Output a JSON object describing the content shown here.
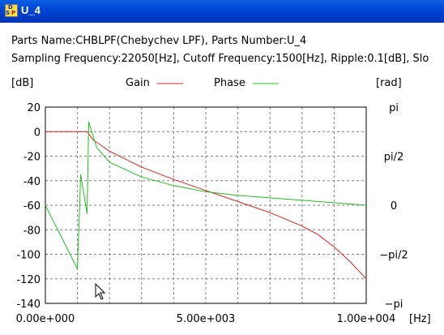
{
  "window": {
    "title": "U_4",
    "icon": "dsp-app-icon"
  },
  "info": {
    "line1": "Parts Name:CHBLPF(Chebychev LPF), Parts Number:U_4",
    "line2": "Sampling Frequency:22050[Hz], Cutoff Frequency:1500[Hz], Ripple:0.1[dB], Slo"
  },
  "legend": {
    "gain_label": "Gain",
    "phase_label": "Phase",
    "gain_color": "#e02020",
    "phase_color": "#20c020"
  },
  "axes": {
    "left_unit": "[dB]",
    "right_unit": "[rad]",
    "x_unit": "[Hz]"
  },
  "chart_data": {
    "type": "line",
    "ylim": [
      -140,
      20
    ],
    "xlim": [
      0,
      10000
    ],
    "y_ticks": [
      "20",
      "0",
      "-20",
      "-40",
      "-60",
      "-80",
      "-100",
      "-120",
      "-140"
    ],
    "y2_ticks": [
      "pi",
      "pi/2",
      "0",
      "−pi/2",
      "−pi"
    ],
    "x_ticks": [
      "0.00e+000",
      "5.00e+003",
      "1.00e+004"
    ],
    "grid": true,
    "series": [
      {
        "name": "Gain",
        "color": "#e02020",
        "x": [
          0,
          500,
          1000,
          1300,
          1500,
          2000,
          3000,
          4000,
          5000,
          6000,
          7000,
          8000,
          8500,
          9000,
          9500,
          10000
        ],
        "y": [
          0,
          0,
          0,
          0,
          -7,
          -16,
          -29,
          -39,
          -48,
          -57,
          -66,
          -77,
          -84,
          -94,
          -106,
          -120
        ]
      },
      {
        "name": "Phase",
        "color": "#20c020",
        "x": [
          0,
          1000,
          1100,
          1300,
          1350,
          1600,
          2000,
          3000,
          4000,
          5000,
          6000,
          7000,
          8000,
          9000,
          10000
        ],
        "y": [
          -60,
          -112,
          -35,
          -67,
          8,
          -13,
          -25,
          -37,
          -44,
          -49,
          -52,
          -54,
          -56,
          -58,
          -60
        ]
      }
    ]
  },
  "cursor": {
    "icon": "mouse-pointer-icon"
  }
}
